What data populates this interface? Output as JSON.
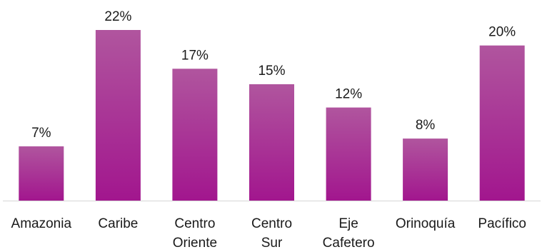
{
  "chart_data": {
    "type": "bar",
    "categories": [
      [
        "Amazonia"
      ],
      [
        "Caribe"
      ],
      [
        "Centro",
        "Oriente"
      ],
      [
        "Centro",
        "Sur"
      ],
      [
        "Eje",
        "Cafetero"
      ],
      [
        "Orinoquía"
      ],
      [
        "Pacífico"
      ]
    ],
    "values": [
      7,
      22,
      17,
      15,
      12,
      8,
      20
    ],
    "data_labels": [
      "7%",
      "22%",
      "17%",
      "15%",
      "12%",
      "8%",
      "20%"
    ],
    "unit": "%",
    "ylim": [
      0,
      22
    ],
    "grid": false,
    "legend": "none",
    "colors": {
      "bar_top": "#b0559e",
      "bar_bottom": "#a2168e",
      "axis": "#d6d6d6"
    }
  }
}
